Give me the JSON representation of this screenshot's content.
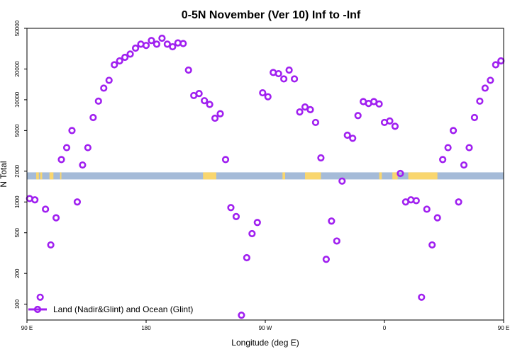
{
  "chart_data": {
    "type": "scatter",
    "title": "0-5N November (Ver 10)   Inf to -Inf",
    "xlabel": "Longitude (deg E)",
    "ylabel": "N Total",
    "y_scale": "log",
    "x_range": [
      90,
      450
    ],
    "y_range": [
      70,
      50000
    ],
    "x_ticks": [
      {
        "value": 90,
        "label": "90 E"
      },
      {
        "value": 180,
        "label": "180"
      },
      {
        "value": 270,
        "label": "90 W"
      },
      {
        "value": 360,
        "label": "0"
      },
      {
        "value": 450,
        "label": "90 E"
      },
      {
        "value": 540,
        "label": "180"
      }
    ],
    "y_ticks": [
      {
        "value": 100,
        "label": "100"
      },
      {
        "value": 200,
        "label": "200"
      },
      {
        "value": 500,
        "label": "500"
      },
      {
        "value": 1000,
        "label": "1000"
      },
      {
        "value": 2000,
        "label": "2000"
      },
      {
        "value": 5000,
        "label": "5000"
      },
      {
        "value": 10000,
        "label": "10000"
      },
      {
        "value": 20000,
        "label": "20000"
      },
      {
        "value": 50000,
        "label": "50000"
      }
    ],
    "land_ocean_band": {
      "y_value": 1800,
      "ocean_color": "#a5bbd8",
      "land_color": "#f9d66e",
      "land_segments": [
        [
          97,
          99
        ],
        [
          100,
          101.5
        ],
        [
          107,
          110
        ],
        [
          115,
          116
        ],
        [
          223,
          233
        ],
        [
          283,
          285
        ],
        [
          300,
          312
        ],
        [
          356,
          358
        ],
        [
          366,
          370
        ],
        [
          378,
          400
        ],
        [
          479,
          480
        ],
        [
          483,
          486
        ],
        [
          492,
          493
        ]
      ]
    },
    "series": [
      {
        "name": "Land (Nadir&Glint) and Ocean (Glint)",
        "color": "#a020f0",
        "marker": "circle-open",
        "points": [
          [
            92,
            1080
          ],
          [
            96,
            1050
          ],
          [
            100,
            117
          ],
          [
            104,
            850
          ],
          [
            108,
            380
          ],
          [
            112,
            700
          ],
          [
            116,
            2600
          ],
          [
            120,
            3400
          ],
          [
            124,
            5000
          ],
          [
            128,
            1000
          ],
          [
            132,
            2300
          ],
          [
            136,
            3400
          ],
          [
            140,
            6700
          ],
          [
            144,
            9700
          ],
          [
            148,
            13000
          ],
          [
            152,
            15500
          ],
          [
            156,
            22000
          ],
          [
            160,
            24000
          ],
          [
            164,
            26000
          ],
          [
            168,
            28000
          ],
          [
            172,
            32000
          ],
          [
            176,
            35000
          ],
          [
            180,
            34000
          ],
          [
            184,
            38000
          ],
          [
            188,
            35000
          ],
          [
            192,
            40000
          ],
          [
            196,
            35000
          ],
          [
            200,
            33000
          ],
          [
            204,
            36000
          ],
          [
            208,
            35500
          ],
          [
            212,
            19500
          ],
          [
            216,
            11000
          ],
          [
            220,
            11500
          ],
          [
            224,
            9800
          ],
          [
            228,
            9000
          ],
          [
            232,
            6600
          ],
          [
            236,
            7300
          ],
          [
            240,
            2600
          ],
          [
            244,
            880
          ],
          [
            248,
            720
          ],
          [
            252,
            78
          ],
          [
            256,
            285
          ],
          [
            260,
            490
          ],
          [
            264,
            630
          ],
          [
            268,
            11700
          ],
          [
            272,
            10700
          ],
          [
            276,
            18500
          ],
          [
            280,
            18000
          ],
          [
            284,
            16000
          ],
          [
            288,
            19500
          ],
          [
            292,
            16000
          ],
          [
            296,
            7600
          ],
          [
            300,
            8500
          ],
          [
            304,
            8000
          ],
          [
            308,
            6000
          ],
          [
            312,
            2700
          ],
          [
            316,
            275
          ],
          [
            320,
            650
          ],
          [
            324,
            415
          ],
          [
            328,
            1600
          ],
          [
            332,
            4500
          ],
          [
            336,
            4200
          ],
          [
            340,
            7000
          ],
          [
            344,
            9600
          ],
          [
            348,
            9200
          ],
          [
            352,
            9600
          ],
          [
            356,
            9100
          ],
          [
            360,
            6000
          ],
          [
            364,
            6200
          ],
          [
            368,
            5500
          ],
          [
            372,
            1900
          ],
          [
            376,
            1000
          ],
          [
            380,
            1050
          ],
          [
            384,
            1030
          ],
          [
            388,
            117
          ],
          [
            392,
            850
          ],
          [
            396,
            380
          ],
          [
            400,
            700
          ],
          [
            404,
            2600
          ],
          [
            408,
            3400
          ],
          [
            412,
            5000
          ],
          [
            416,
            1000
          ],
          [
            420,
            2300
          ],
          [
            424,
            3400
          ],
          [
            428,
            6700
          ],
          [
            432,
            9700
          ],
          [
            436,
            13000
          ],
          [
            440,
            15500
          ],
          [
            444,
            22000
          ],
          [
            448,
            24000
          ]
        ]
      }
    ],
    "legend": {
      "placement": "bottom-left"
    },
    "grid": false
  }
}
